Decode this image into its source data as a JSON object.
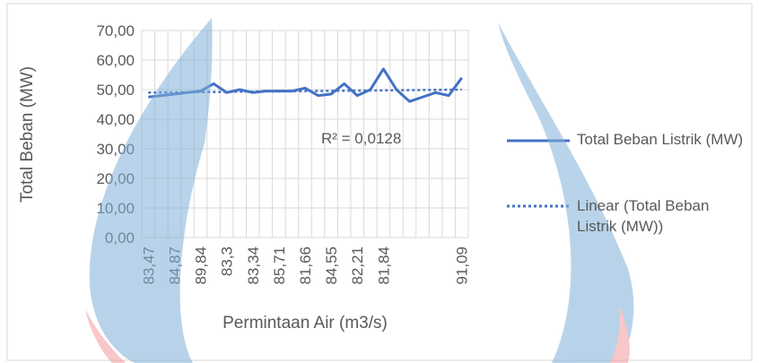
{
  "chart_data": {
    "type": "line",
    "y_label": "Total Beban (MW)",
    "x_label": "Permintaan Air (m3/s)",
    "categories": [
      "83,47",
      null,
      "84,87",
      null,
      "89,84",
      null,
      "83,3",
      null,
      "83,34",
      null,
      "85,71",
      null,
      "81,66",
      null,
      "84,55",
      null,
      "82,21",
      null,
      "81,84",
      null,
      null,
      null,
      null,
      null,
      "91,09"
    ],
    "series": [
      {
        "name": "Total Beban Listrik (MW)",
        "color": "#4472c4",
        "values": [
          47.5,
          48,
          48.5,
          49,
          49.5,
          52,
          49,
          50,
          49,
          49.5,
          49.5,
          49.5,
          50.5,
          48,
          48.5,
          52,
          48,
          50,
          57,
          50,
          46,
          47.5,
          49,
          48,
          54
        ]
      }
    ],
    "trendline": {
      "name": "Linear (Total Beban Listrik (MW))",
      "color": "#4472c4",
      "values": [
        49,
        50
      ],
      "annotation": "R² = 0,0128"
    },
    "ylim": [
      0,
      70
    ],
    "yticks": [
      {
        "value": 0,
        "label": "0,00"
      },
      {
        "value": 10,
        "label": "10,00"
      },
      {
        "value": 20,
        "label": "20,00"
      },
      {
        "value": 30,
        "label": "30,00"
      },
      {
        "value": 40,
        "label": "40,00"
      },
      {
        "value": 50,
        "label": "50,00"
      },
      {
        "value": 60,
        "label": "60,00"
      },
      {
        "value": 70,
        "label": "70,00"
      }
    ],
    "grid": true
  }
}
